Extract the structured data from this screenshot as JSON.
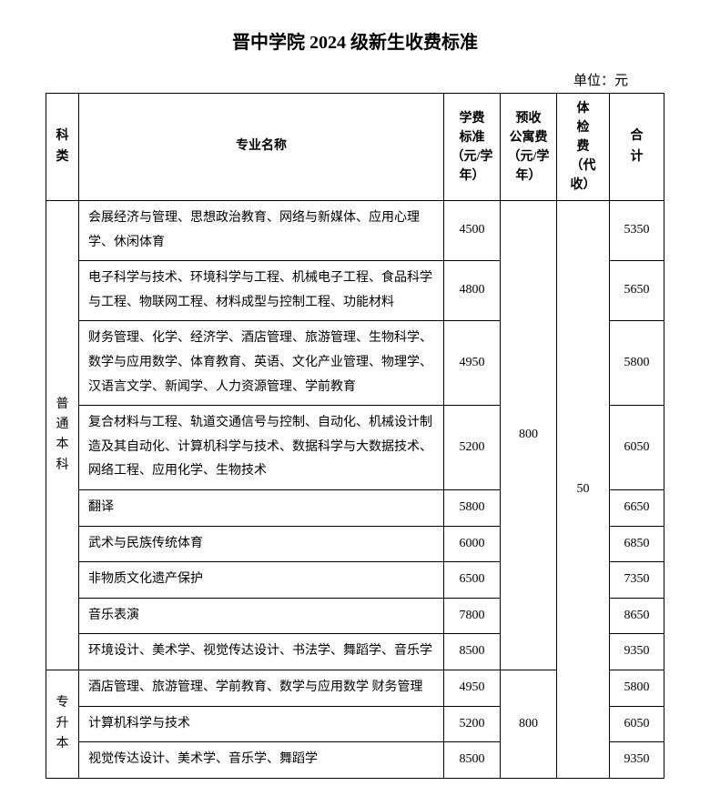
{
  "title": "晋中学院 2024 级新生收费标准",
  "unit_label": "单位：元",
  "headers": {
    "category": "科类",
    "major": "专业名称",
    "tuition": "学费标准（元/学年）",
    "dorm": "预收公寓费（元/学年）",
    "medical": "体检费（代收）",
    "total": "合计"
  },
  "shared": {
    "medical_fee": "50"
  },
  "groups": [
    {
      "category": "普通本科",
      "dorm_fee": "800",
      "rows": [
        {
          "major": "会展经济与管理、思想政治教育、网络与新媒体、应用心理学、休闲体育",
          "tuition": "4500",
          "total": "5350"
        },
        {
          "major": "电子科学与技术、环境科学与工程、机械电子工程、食品科学与工程、物联网工程、材料成型与控制工程、功能材料",
          "tuition": "4800",
          "total": "5650"
        },
        {
          "major": "财务管理、化学、经济学、酒店管理、旅游管理、生物科学、数学与应用数学、体育教育、英语、文化产业管理、物理学、汉语言文学、新闻学、人力资源管理、学前教育",
          "tuition": "4950",
          "total": "5800"
        },
        {
          "major": "复合材料与工程、轨道交通信号与控制、自动化、机械设计制造及其自动化、计算机科学与技术、数据科学与大数据技术、网络工程、应用化学、生物技术",
          "tuition": "5200",
          "total": "6050"
        },
        {
          "major": "翻译",
          "tuition": "5800",
          "total": "6650"
        },
        {
          "major": "武术与民族传统体育",
          "tuition": "6000",
          "total": "6850"
        },
        {
          "major": "非物质文化遗产保护",
          "tuition": "6500",
          "total": "7350"
        },
        {
          "major": "音乐表演",
          "tuition": "7800",
          "total": "8650"
        },
        {
          "major": "环境设计、美术学、视觉传达设计、书法学、舞蹈学、音乐学",
          "tuition": "8500",
          "total": "9350"
        }
      ]
    },
    {
      "category": "专升本",
      "dorm_fee": "800",
      "rows": [
        {
          "major": "酒店管理、旅游管理、学前教育、数学与应用数学 财务管理",
          "tuition": "4950",
          "total": "5800"
        },
        {
          "major": "计算机科学与技术",
          "tuition": "5200",
          "total": "6050"
        },
        {
          "major": "视觉传达设计、美术学、音乐学、舞蹈学",
          "tuition": "8500",
          "total": "9350"
        }
      ]
    }
  ]
}
